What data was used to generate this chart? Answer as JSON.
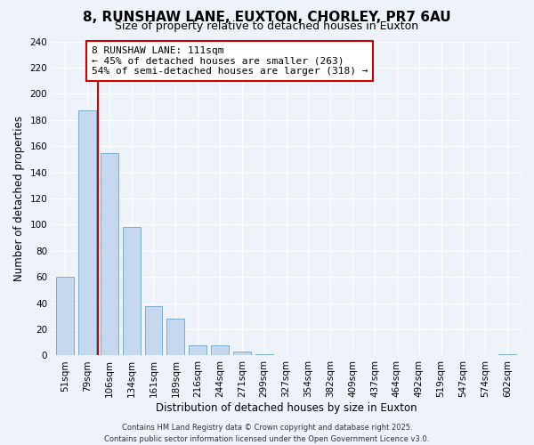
{
  "title": "8, RUNSHAW LANE, EUXTON, CHORLEY, PR7 6AU",
  "subtitle": "Size of property relative to detached houses in Euxton",
  "xlabel": "Distribution of detached houses by size in Euxton",
  "ylabel": "Number of detached properties",
  "bar_labels": [
    "51sqm",
    "79sqm",
    "106sqm",
    "134sqm",
    "161sqm",
    "189sqm",
    "216sqm",
    "244sqm",
    "271sqm",
    "299sqm",
    "327sqm",
    "354sqm",
    "382sqm",
    "409sqm",
    "437sqm",
    "464sqm",
    "492sqm",
    "519sqm",
    "547sqm",
    "574sqm",
    "602sqm"
  ],
  "bar_values": [
    60,
    187,
    155,
    98,
    38,
    28,
    8,
    8,
    3,
    1,
    0,
    0,
    0,
    0,
    0,
    0,
    0,
    0,
    0,
    0,
    1
  ],
  "bar_color": "#c5d8ee",
  "bar_edge_color": "#7badd4",
  "vline_x_index": 2,
  "vline_color": "#cc0000",
  "ylim": [
    0,
    240
  ],
  "yticks": [
    0,
    20,
    40,
    60,
    80,
    100,
    120,
    140,
    160,
    180,
    200,
    220,
    240
  ],
  "annotation_line1": "8 RUNSHAW LANE: 111sqm",
  "annotation_line2": "← 45% of detached houses are smaller (263)",
  "annotation_line3": "54% of semi-detached houses are larger (318) →",
  "annotation_box_color": "#ffffff",
  "annotation_box_edge": "#cc0000",
  "footer_line1": "Contains HM Land Registry data © Crown copyright and database right 2025.",
  "footer_line2": "Contains public sector information licensed under the Open Government Licence v3.0.",
  "background_color": "#eef2f9",
  "title_fontsize": 11,
  "subtitle_fontsize": 9,
  "tick_fontsize": 7.5,
  "label_fontsize": 8.5,
  "annotation_fontsize": 8,
  "footer_fontsize": 6
}
